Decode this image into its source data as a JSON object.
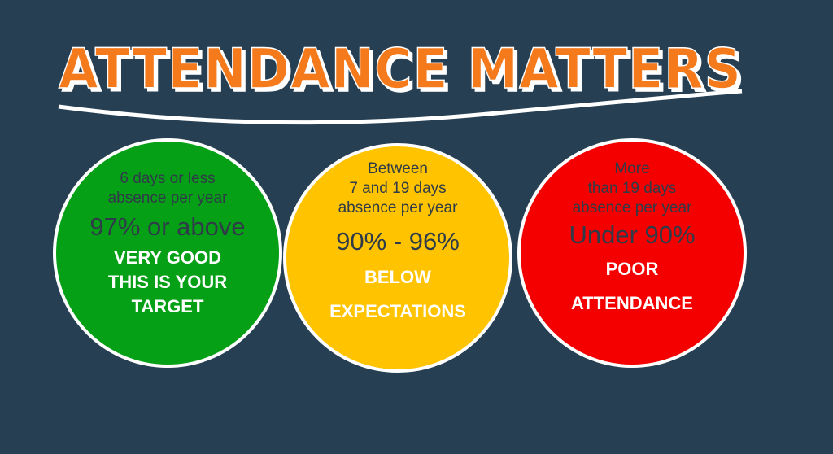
{
  "title": "ATTENDANCE MATTERS",
  "colors": {
    "background": "#263f53",
    "title": "#f47a1c",
    "green": "#06a016",
    "yellow": "#ffc300",
    "red": "#f40000"
  },
  "circles": [
    {
      "lines": [
        "6 days or less",
        "absence per year"
      ],
      "range": "97% or above",
      "label": [
        "VERY GOOD",
        "THIS IS YOUR",
        "TARGET"
      ]
    },
    {
      "lines": [
        "Between",
        "7 and 19 days",
        "absence per year"
      ],
      "range": "90% - 96%",
      "label": [
        "BELOW",
        "EXPECTATIONS"
      ]
    },
    {
      "lines": [
        "More",
        "than 19 days",
        "absence per year"
      ],
      "range": "Under 90%",
      "label": [
        "POOR",
        "ATTENDANCE"
      ]
    }
  ]
}
